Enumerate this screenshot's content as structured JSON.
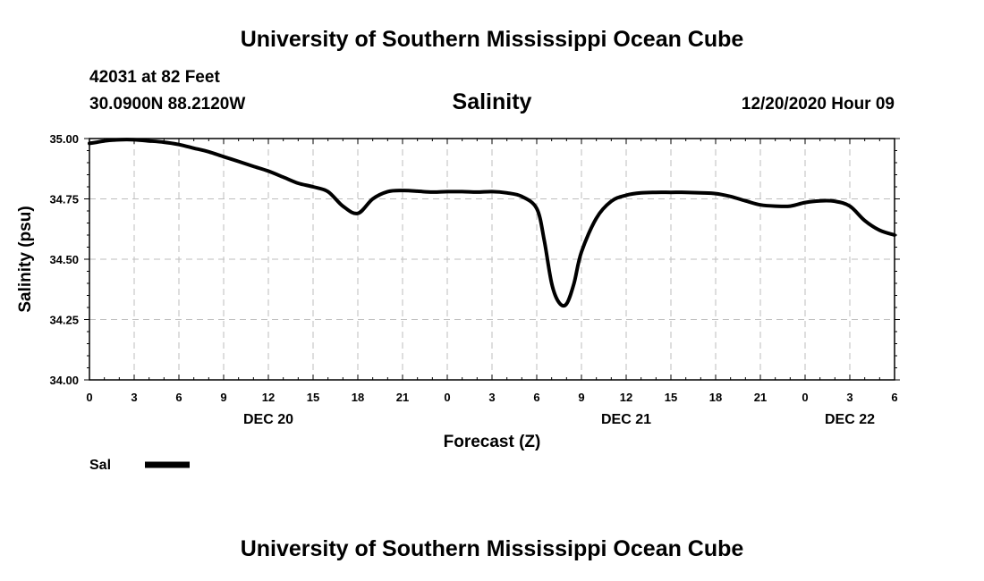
{
  "page": {
    "title": "University of Southern Mississippi Ocean Cube",
    "footer_title": "University of Southern Mississippi Ocean Cube",
    "station": "42031 at 82 Feet",
    "coordinates": "30.0900N 88.2120W",
    "subtitle": "Salinity",
    "timestamp": "12/20/2020 Hour 09"
  },
  "chart_data": {
    "type": "line",
    "title": "Salinity",
    "xlabel": "Forecast (Z)",
    "ylabel": "Salinity (psu)",
    "xlim": [
      0,
      54
    ],
    "ylim": [
      34.0,
      35.0
    ],
    "grid": true,
    "legend_position": "bottom-left",
    "x_tick_labels": [
      "0",
      "3",
      "6",
      "9",
      "12",
      "15",
      "18",
      "21",
      "0",
      "3",
      "6",
      "9",
      "12",
      "15",
      "18",
      "21",
      "0",
      "3",
      "6"
    ],
    "y_tick_labels": [
      "34.00",
      "34.25",
      "34.50",
      "34.75",
      "35.00"
    ],
    "date_labels": [
      {
        "label": "DEC 20",
        "hour": 12
      },
      {
        "label": "DEC 21",
        "hour": 36
      },
      {
        "label": "DEC 22",
        "hour": 51
      }
    ],
    "series": [
      {
        "name": "Sal",
        "color": "#000000",
        "x": [
          0,
          0.5,
          1,
          2,
          3,
          4,
          5,
          6,
          7,
          8,
          9,
          10,
          11,
          12,
          13,
          14,
          15,
          16,
          17,
          18,
          19,
          20,
          21,
          22,
          23,
          24,
          25,
          26,
          27,
          28,
          29,
          30,
          30.5,
          31,
          31.5,
          32,
          32.5,
          33,
          34,
          35,
          36,
          37,
          38,
          39,
          40,
          41,
          42,
          43,
          44,
          45,
          46,
          47,
          48,
          49,
          50,
          51,
          52,
          53,
          54
        ],
        "y": [
          34.98,
          34.985,
          34.99,
          34.995,
          34.995,
          34.99,
          34.985,
          34.975,
          34.96,
          34.945,
          34.925,
          34.905,
          34.885,
          34.865,
          34.84,
          34.815,
          34.8,
          34.78,
          34.72,
          34.69,
          34.75,
          34.78,
          34.785,
          34.782,
          34.778,
          34.78,
          34.78,
          34.778,
          34.78,
          34.775,
          34.76,
          34.71,
          34.58,
          34.4,
          34.32,
          34.315,
          34.4,
          34.53,
          34.67,
          34.74,
          34.765,
          34.775,
          34.777,
          34.777,
          34.777,
          34.775,
          34.772,
          34.76,
          34.742,
          34.725,
          34.72,
          34.72,
          34.735,
          34.742,
          34.74,
          34.72,
          34.66,
          34.62,
          34.6
        ]
      }
    ]
  }
}
